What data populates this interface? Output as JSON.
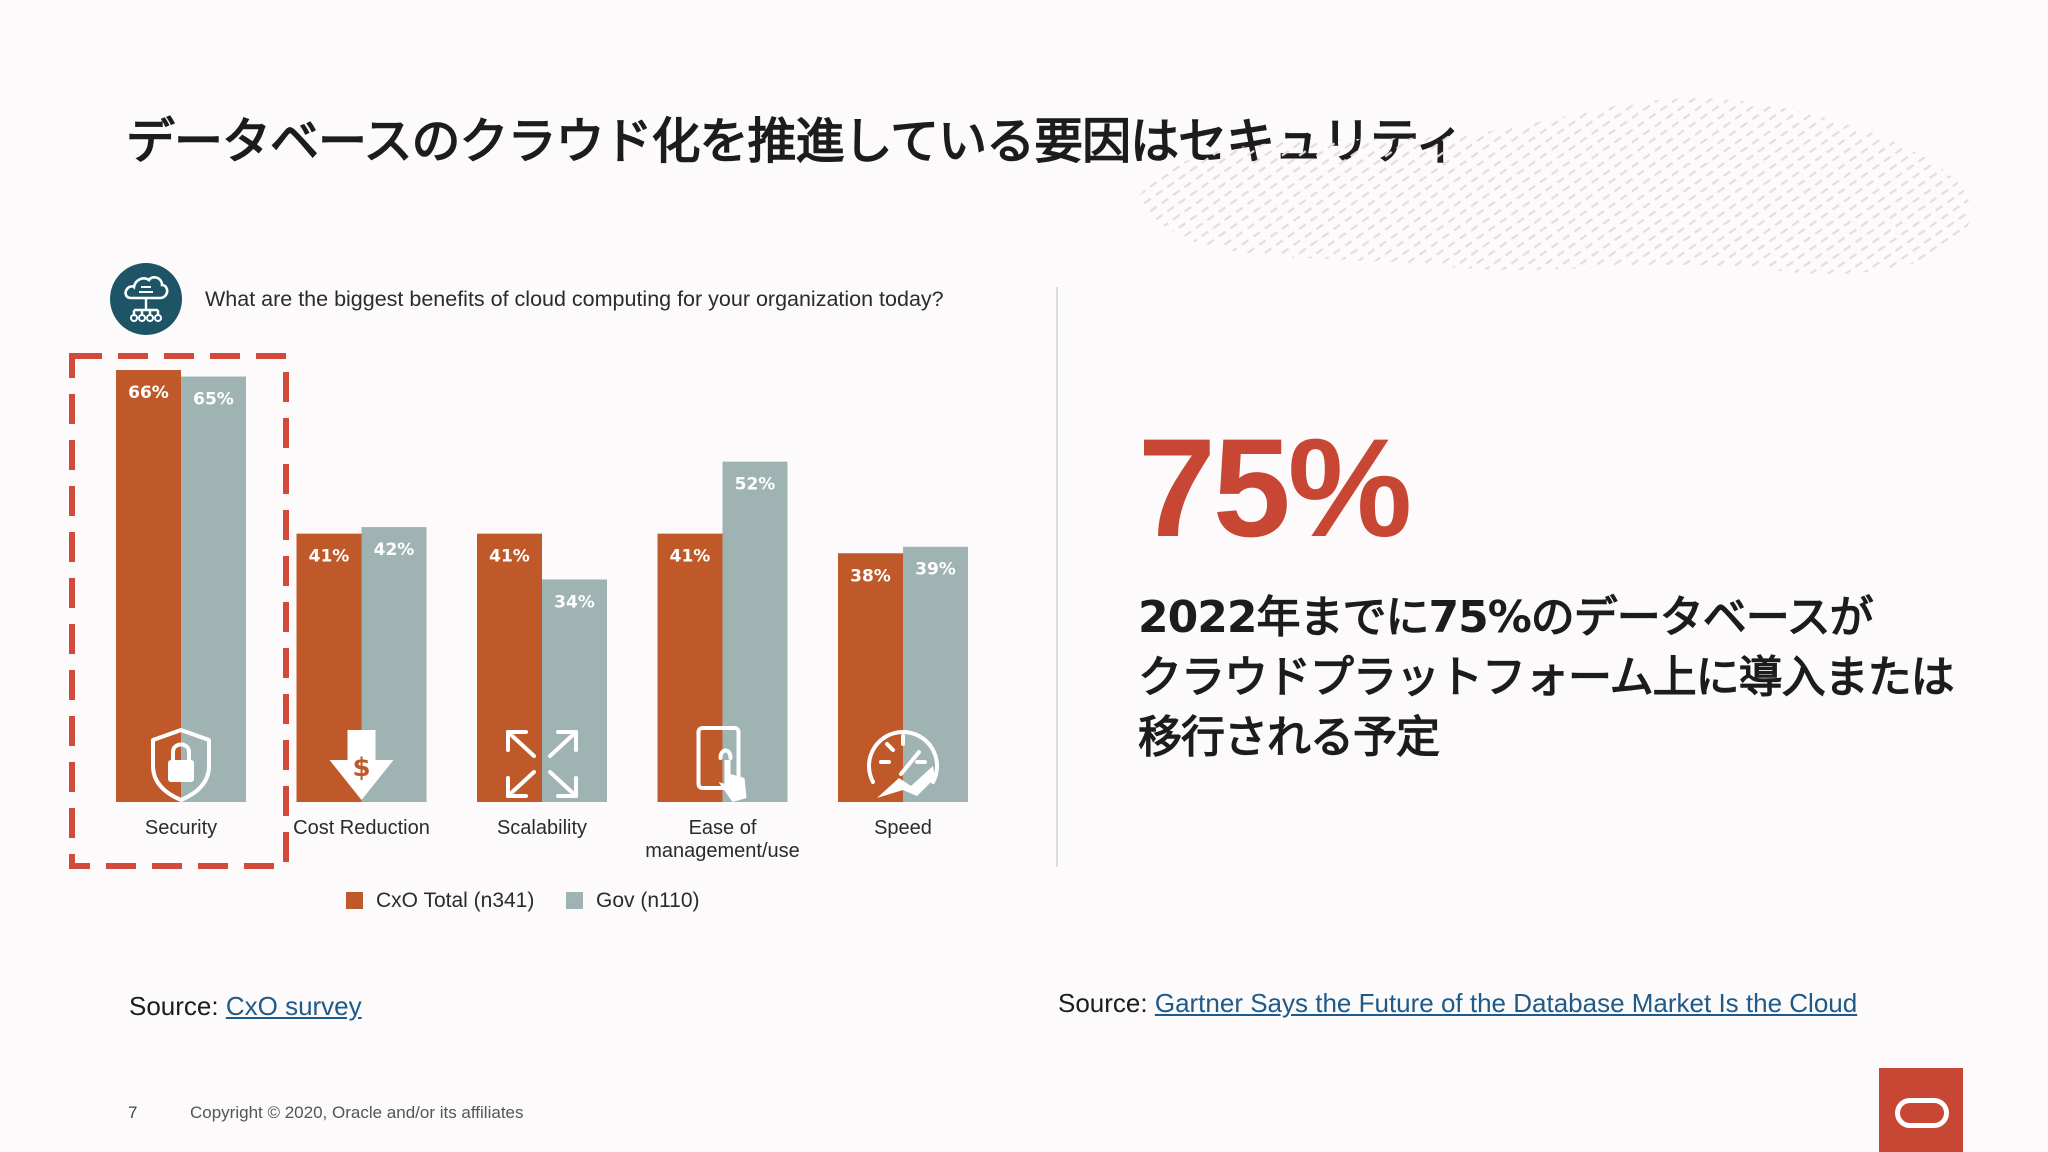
{
  "title": "データベースのクラウド化を推進している要因はセキュリティ",
  "question": "What are the biggest benefits of cloud computing for your organization today?",
  "icons": {
    "question": "cloud-network-icon",
    "categories": [
      "shield-lock-icon",
      "dollar-down-arrow-icon",
      "expand-arrows-icon",
      "tablet-touch-icon",
      "speedometer-icon"
    ],
    "logo": "oracle-logo-icon"
  },
  "colors": {
    "cxo": "#c0592a",
    "gov": "#9fb3b2",
    "accent": "#c74634",
    "highlight_border": "#d44a3a",
    "link": "#1e5a8a"
  },
  "chart_data": {
    "type": "bar",
    "categories": [
      "Security",
      "Cost Reduction",
      "Scalability",
      "Ease of management/use",
      "Speed"
    ],
    "category_lines": [
      [
        "Security"
      ],
      [
        "Cost Reduction"
      ],
      [
        "Scalability"
      ],
      [
        "Ease of",
        "management/use"
      ],
      [
        "Speed"
      ]
    ],
    "series": [
      {
        "name": "CxO Total (n341)",
        "values": [
          66,
          41,
          41,
          41,
          38
        ],
        "labels": [
          "66%",
          "41%",
          "41%",
          "41%",
          "38%"
        ]
      },
      {
        "name": "Gov (n110)",
        "values": [
          65,
          42,
          34,
          52,
          39
        ],
        "labels": [
          "65%",
          "42%",
          "34%",
          "52%",
          "39%"
        ]
      }
    ],
    "ylim": [
      0,
      66
    ],
    "highlighted_category": "Security",
    "legend_position": "bottom",
    "grid": false
  },
  "stat": {
    "value": "75%",
    "description_lines": [
      "2022年までに75%のデータベースが",
      "クラウドプラットフォーム上に導入または",
      "移行される予定"
    ]
  },
  "sources": {
    "left_prefix": "Source:",
    "left_link": "CxO survey",
    "right_prefix": "Source:",
    "right_link": "Gartner Says the Future of the Database Market Is the Cloud"
  },
  "footer": {
    "page_number": "7",
    "copyright": "Copyright © 2020, Oracle and/or its affiliates"
  }
}
